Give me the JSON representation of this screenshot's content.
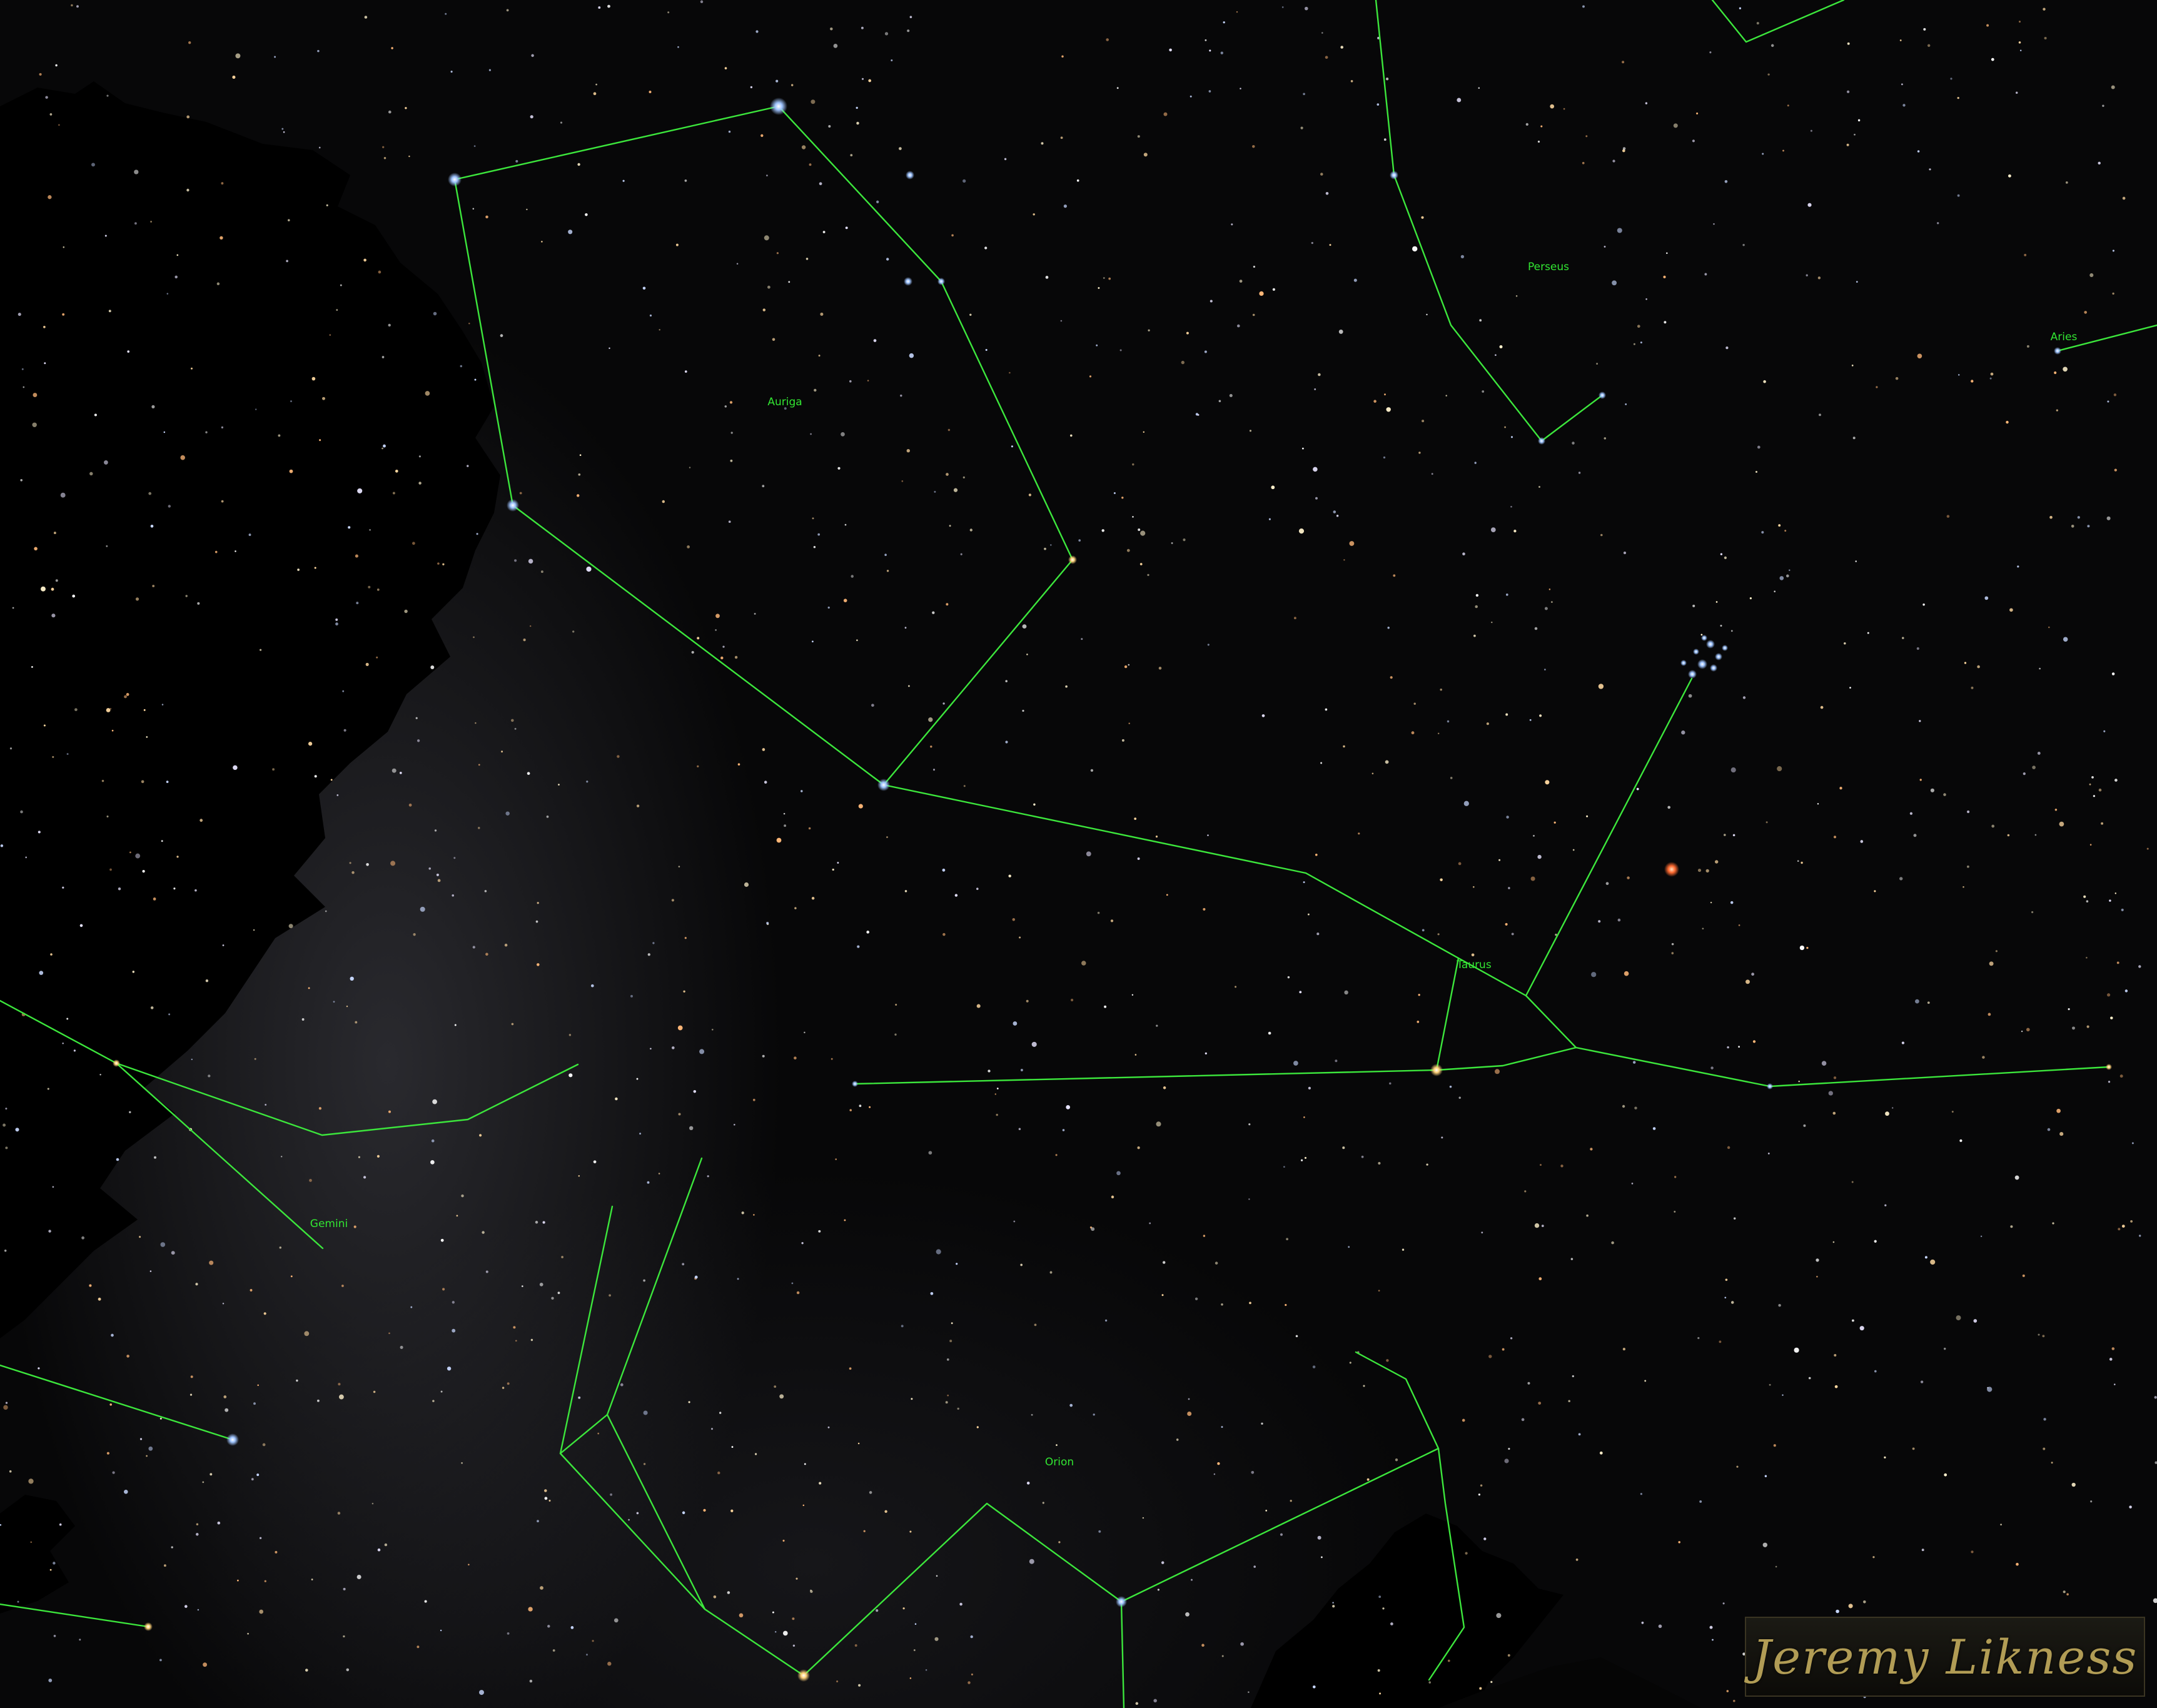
{
  "constellations": [
    {
      "name": "Auriga"
    },
    {
      "name": "Perseus"
    },
    {
      "name": "Aries"
    },
    {
      "name": "Taurus"
    },
    {
      "name": "Gemini"
    },
    {
      "name": "Orion"
    }
  ],
  "watermark": {
    "text": "Jeremy Likness"
  },
  "colors": {
    "line": "#3ce63c",
    "label": "#32e632",
    "sky": "#070708",
    "tree_silhouette": "#000000",
    "watermark_text": "#b19c55",
    "mars": "#ff6a30"
  }
}
